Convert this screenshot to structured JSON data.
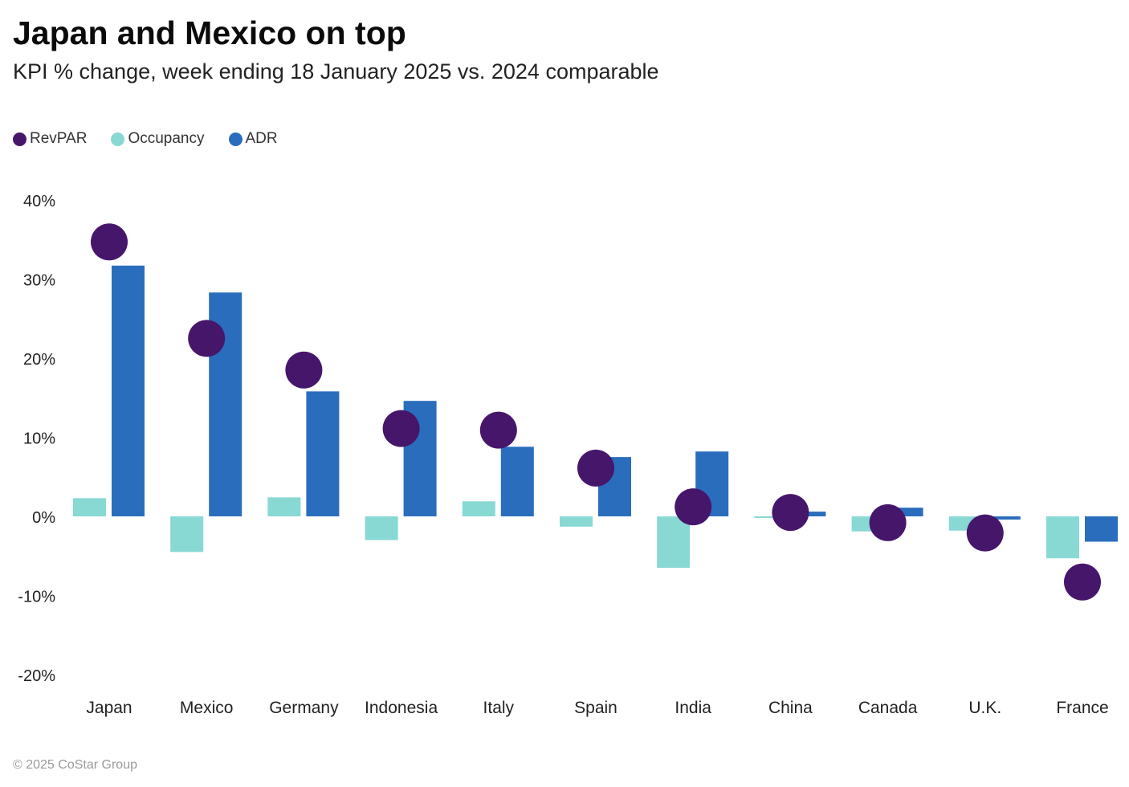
{
  "chart_data": {
    "type": "bar",
    "title": "Japan and Mexico on top",
    "subtitle": "KPI % change, week ending 18 January 2025 vs. 2024 comparable",
    "categories": [
      "Japan",
      "Mexico",
      "Germany",
      "Indonesia",
      "Italy",
      "Spain",
      "India",
      "China",
      "Canada",
      "U.K.",
      "France"
    ],
    "series": [
      {
        "name": "RevPAR",
        "mark": "dot",
        "color": "#46166b",
        "values": [
          34.7,
          22.5,
          18.5,
          11.1,
          10.9,
          6.1,
          1.2,
          0.5,
          -0.8,
          -2.1,
          -8.3
        ]
      },
      {
        "name": "Occupancy",
        "mark": "bar",
        "color": "#88d8d4",
        "values": [
          2.3,
          -4.5,
          2.4,
          -3.0,
          1.9,
          -1.3,
          -6.5,
          -0.2,
          -1.9,
          -1.8,
          -5.3
        ]
      },
      {
        "name": "ADR",
        "mark": "bar",
        "color": "#2a6dbd",
        "values": [
          31.7,
          28.3,
          15.8,
          14.6,
          8.8,
          7.5,
          8.2,
          0.6,
          1.1,
          -0.4,
          -3.2
        ]
      }
    ],
    "ylim": [
      -20,
      40
    ],
    "yticks": [
      40,
      30,
      20,
      10,
      0,
      -10,
      -20
    ],
    "ytick_labels": [
      "40%",
      "30%",
      "20%",
      "10%",
      "0%",
      "-10%",
      "-20%"
    ],
    "xlabel": "",
    "ylabel": "",
    "grid": false,
    "legend_position": "top-left"
  },
  "footer": {
    "copyright": "© 2025 CoStar Group"
  }
}
